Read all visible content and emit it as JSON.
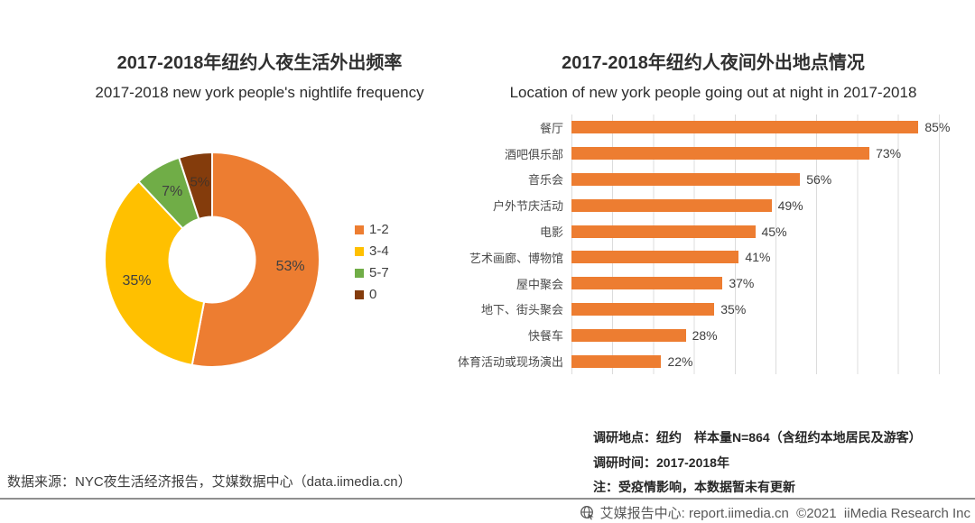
{
  "page": {
    "source_note": "数据来源：NYC夜生活经济报告，艾媒数据中心（data.iimedia.cn）",
    "footer": {
      "icon": "globe-cursor-icon",
      "text": "艾媒报告中心: report.iimedia.cn  ©2021  iiMedia Research Inc"
    }
  },
  "palette": {
    "orange": "#ED7D31",
    "yellow": "#FFC000",
    "green": "#70AD47",
    "brown": "#843C0C",
    "label_dark": "#404040",
    "gridline": "#DCDCDC",
    "divider": "#8F8F8F"
  },
  "chart_data": [
    {
      "type": "pie",
      "donut": true,
      "title": "2017-2018年纽约人夜生活外出频率",
      "subtitle": "2017-2018 new york people's nightlife frequency",
      "labels": [
        "1-2",
        "3-4",
        "5-7",
        "0"
      ],
      "values": [
        53,
        35,
        7,
        5
      ],
      "value_labels": [
        "53%",
        "35%",
        "7%",
        "5%"
      ],
      "colors": [
        "#ED7D31",
        "#FFC000",
        "#70AD47",
        "#843C0C"
      ],
      "legend_position": "right",
      "start_angle": "top",
      "direction": "clockwise"
    },
    {
      "type": "bar",
      "orientation": "horizontal",
      "title": "2017-2018年纽约人夜间外出地点情况",
      "subtitle": "Location of new york people going out at night in 2017-2018",
      "categories": [
        "餐厅",
        "酒吧俱乐部",
        "音乐会",
        "户外节庆活动",
        "电影",
        "艺术画廊、博物馆",
        "屋中聚会",
        "地下、街头聚会",
        "快餐车",
        "体育活动或现场演出"
      ],
      "values": [
        85,
        73,
        56,
        49,
        45,
        41,
        37,
        35,
        28,
        22
      ],
      "value_labels": [
        "85%",
        "73%",
        "56%",
        "49%",
        "45%",
        "41%",
        "37%",
        "35%",
        "28%",
        "22%"
      ],
      "bar_color": "#ED7D31",
      "xlim": [
        0,
        90
      ],
      "grid": true,
      "notes": [
        "调研地点：纽约　样本量N=864（含纽约本地居民及游客）",
        "调研时间：2017-2018年",
        "注：受疫情影响，本数据暂未有更新"
      ]
    }
  ]
}
